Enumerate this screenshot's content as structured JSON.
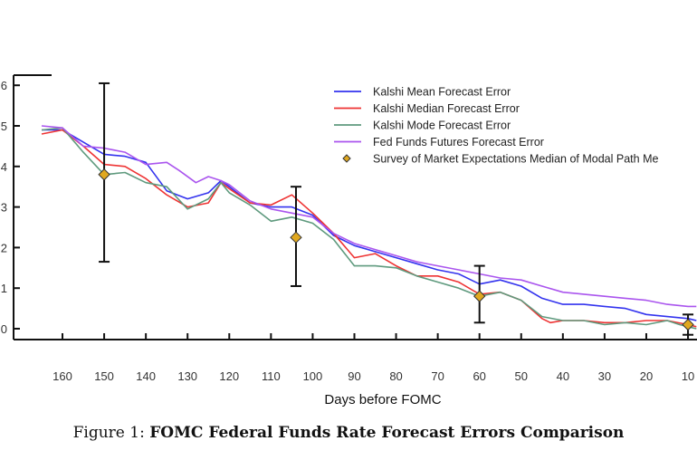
{
  "chart_data": {
    "type": "line",
    "title": "",
    "xlabel": "Days before FOMC",
    "ylabel": "",
    "xlim": [
      167,
      7
    ],
    "ylim": [
      -0.25,
      6.25
    ],
    "x_reversed": true,
    "x_ticks": [
      160,
      150,
      140,
      130,
      120,
      110,
      100,
      90,
      80,
      70,
      60,
      50,
      40,
      30,
      20,
      10
    ],
    "y_ticks": [
      0,
      1,
      2,
      3,
      4,
      5,
      6
    ],
    "grid": false,
    "legend_position": "top-right",
    "series": [
      {
        "name": "Kalshi Mean Forecast Error",
        "color": "#3333ee",
        "x": [
          165,
          160,
          155,
          150,
          145,
          140,
          135,
          130,
          125,
          122,
          120,
          115,
          110,
          105,
          100,
          95,
          90,
          85,
          80,
          75,
          70,
          65,
          60,
          55,
          50,
          45,
          40,
          35,
          30,
          25,
          20,
          15,
          10,
          8
        ],
        "y": [
          4.9,
          4.9,
          4.6,
          4.3,
          4.25,
          4.1,
          3.4,
          3.2,
          3.35,
          3.65,
          3.5,
          3.1,
          3.0,
          3.0,
          2.8,
          2.3,
          2.05,
          1.9,
          1.75,
          1.6,
          1.45,
          1.35,
          1.1,
          1.2,
          1.05,
          0.75,
          0.6,
          0.6,
          0.55,
          0.5,
          0.35,
          0.3,
          0.25,
          0.2
        ]
      },
      {
        "name": "Kalshi Median Forecast Error",
        "color": "#ee3333",
        "x": [
          165,
          160,
          155,
          150,
          145,
          140,
          135,
          130,
          125,
          122,
          120,
          115,
          110,
          105,
          100,
          95,
          90,
          85,
          80,
          75,
          70,
          65,
          60,
          55,
          50,
          45,
          43,
          40,
          35,
          30,
          25,
          20,
          15,
          10,
          8
        ],
        "y": [
          4.8,
          4.9,
          4.5,
          4.05,
          4.0,
          3.7,
          3.3,
          3.0,
          3.1,
          3.6,
          3.45,
          3.1,
          3.05,
          3.3,
          2.85,
          2.35,
          1.75,
          1.85,
          1.55,
          1.3,
          1.3,
          1.15,
          0.85,
          0.9,
          0.7,
          0.25,
          0.15,
          0.2,
          0.2,
          0.15,
          0.15,
          0.2,
          0.2,
          0.1,
          0.05
        ]
      },
      {
        "name": "Kalshi Mode Forecast Error",
        "color": "#5f9a7e",
        "x": [
          165,
          160,
          155,
          150,
          145,
          140,
          135,
          130,
          125,
          122,
          120,
          115,
          110,
          105,
          100,
          95,
          90,
          85,
          80,
          75,
          70,
          65,
          60,
          55,
          50,
          45,
          40,
          35,
          30,
          25,
          20,
          15,
          12,
          10,
          8
        ],
        "y": [
          4.9,
          4.95,
          4.35,
          3.8,
          3.85,
          3.6,
          3.5,
          2.95,
          3.2,
          3.6,
          3.35,
          3.05,
          2.65,
          2.75,
          2.6,
          2.2,
          1.55,
          1.55,
          1.5,
          1.3,
          1.15,
          1.0,
          0.8,
          0.9,
          0.7,
          0.3,
          0.2,
          0.2,
          0.1,
          0.15,
          0.1,
          0.2,
          0.1,
          0.05,
          0.0
        ]
      },
      {
        "name": "Fed Funds Futures Forecast Error",
        "color": "#aa55ee",
        "x": [
          165,
          160,
          155,
          150,
          145,
          140,
          135,
          132,
          128,
          125,
          122,
          120,
          115,
          110,
          105,
          100,
          95,
          90,
          85,
          80,
          75,
          70,
          65,
          60,
          55,
          50,
          45,
          40,
          35,
          30,
          25,
          20,
          15,
          10,
          8
        ],
        "y": [
          5.0,
          4.95,
          4.5,
          4.45,
          4.35,
          4.05,
          4.1,
          3.9,
          3.6,
          3.75,
          3.65,
          3.55,
          3.15,
          2.95,
          2.85,
          2.75,
          2.35,
          2.1,
          1.95,
          1.8,
          1.65,
          1.55,
          1.45,
          1.35,
          1.25,
          1.2,
          1.05,
          0.9,
          0.85,
          0.8,
          0.75,
          0.7,
          0.6,
          0.55,
          0.55
        ]
      }
    ],
    "points": {
      "name": "Survey of Market Expectations Median of Modal Path Me",
      "color": "#e0a820",
      "x": [
        150,
        104,
        60,
        10
      ],
      "y": [
        3.8,
        2.25,
        0.8,
        0.1
      ],
      "err_low": [
        1.65,
        1.05,
        0.15,
        -0.15
      ],
      "err_high": [
        6.05,
        3.5,
        1.55,
        0.35
      ]
    }
  },
  "caption": {
    "prefix": "Figure 1:",
    "title": "FOMC Federal Funds Rate Forecast Errors Comparison"
  }
}
